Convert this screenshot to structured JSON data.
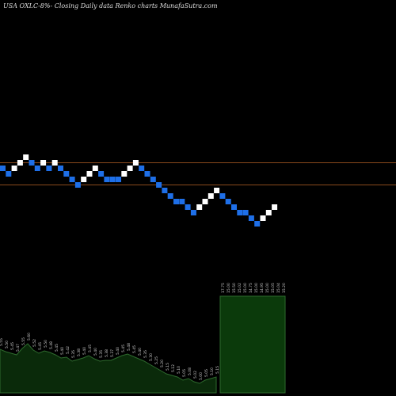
{
  "title": "USA OXLC-8%-  Closing Daily data  Renko  charts MunafaSutra.com",
  "colors": {
    "background": "#000000",
    "up_brick": "#ffffff",
    "down_brick": "#1e6fe8",
    "ref_line": "#8b4a1c",
    "volume_fill": "#0a2a0a",
    "volume_bright": "#0b3a0b",
    "volume_stroke": "#2e6b2e",
    "label": "#cccccc"
  },
  "chart_data": {
    "type": "renko",
    "bricks": [
      {
        "level": 22,
        "dir": "down"
      },
      {
        "level": 21,
        "dir": "down"
      },
      {
        "level": 22,
        "dir": "up"
      },
      {
        "level": 23,
        "dir": "up"
      },
      {
        "level": 24,
        "dir": "up"
      },
      {
        "level": 23,
        "dir": "down"
      },
      {
        "level": 22,
        "dir": "down"
      },
      {
        "level": 23,
        "dir": "up"
      },
      {
        "level": 22,
        "dir": "down"
      },
      {
        "level": 23,
        "dir": "up"
      },
      {
        "level": 22,
        "dir": "down"
      },
      {
        "level": 21,
        "dir": "down"
      },
      {
        "level": 20,
        "dir": "down"
      },
      {
        "level": 19,
        "dir": "down"
      },
      {
        "level": 20,
        "dir": "up"
      },
      {
        "level": 21,
        "dir": "up"
      },
      {
        "level": 22,
        "dir": "up"
      },
      {
        "level": 21,
        "dir": "down"
      },
      {
        "level": 20,
        "dir": "down"
      },
      {
        "level": 20,
        "dir": "down"
      },
      {
        "level": 20,
        "dir": "down"
      },
      {
        "level": 21,
        "dir": "up"
      },
      {
        "level": 22,
        "dir": "up"
      },
      {
        "level": 23,
        "dir": "up"
      },
      {
        "level": 22,
        "dir": "down"
      },
      {
        "level": 21,
        "dir": "down"
      },
      {
        "level": 20,
        "dir": "down"
      },
      {
        "level": 19,
        "dir": "down"
      },
      {
        "level": 18,
        "dir": "down"
      },
      {
        "level": 17,
        "dir": "down"
      },
      {
        "level": 16,
        "dir": "down"
      },
      {
        "level": 16,
        "dir": "down"
      },
      {
        "level": 15,
        "dir": "down"
      },
      {
        "level": 14,
        "dir": "down"
      },
      {
        "level": 15,
        "dir": "up"
      },
      {
        "level": 16,
        "dir": "up"
      },
      {
        "level": 17,
        "dir": "up"
      },
      {
        "level": 18,
        "dir": "up"
      },
      {
        "level": 17,
        "dir": "down"
      },
      {
        "level": 16,
        "dir": "down"
      },
      {
        "level": 15,
        "dir": "down"
      },
      {
        "level": 14,
        "dir": "down"
      },
      {
        "level": 14,
        "dir": "down"
      },
      {
        "level": 13,
        "dir": "down"
      },
      {
        "level": 12,
        "dir": "down"
      },
      {
        "level": 13,
        "dir": "up"
      },
      {
        "level": 14,
        "dir": "up"
      },
      {
        "level": 15,
        "dir": "up"
      }
    ],
    "reference_lines": [
      23,
      19
    ],
    "volume": [
      {
        "label": "5.55",
        "value": 55
      },
      {
        "label": "5.50",
        "value": 52
      },
      {
        "label": "5.45",
        "value": 50
      },
      {
        "label": "5.47",
        "value": 48
      },
      {
        "label": "5.55",
        "value": 56
      },
      {
        "label": "5.60",
        "value": 62
      },
      {
        "label": "5.52",
        "value": 54
      },
      {
        "label": "5.45",
        "value": 50
      },
      {
        "label": "5.50",
        "value": 53
      },
      {
        "label": "5.48",
        "value": 51
      },
      {
        "label": "5.45",
        "value": 48
      },
      {
        "label": "5.40",
        "value": 44
      },
      {
        "label": "5.42",
        "value": 45
      },
      {
        "label": "5.35",
        "value": 40
      },
      {
        "label": "5.38",
        "value": 42
      },
      {
        "label": "5.40",
        "value": 44
      },
      {
        "label": "5.45",
        "value": 47
      },
      {
        "label": "5.40",
        "value": 43
      },
      {
        "label": "5.35",
        "value": 40
      },
      {
        "label": "5.38",
        "value": 41
      },
      {
        "label": "5.37",
        "value": 41
      },
      {
        "label": "5.40",
        "value": 44
      },
      {
        "label": "5.45",
        "value": 47
      },
      {
        "label": "5.48",
        "value": 49
      },
      {
        "label": "5.45",
        "value": 46
      },
      {
        "label": "5.40",
        "value": 43
      },
      {
        "label": "5.35",
        "value": 40
      },
      {
        "label": "5.30",
        "value": 36
      },
      {
        "label": "5.25",
        "value": 32
      },
      {
        "label": "5.20",
        "value": 28
      },
      {
        "label": "5.15",
        "value": 24
      },
      {
        "label": "5.12",
        "value": 22
      },
      {
        "label": "5.10",
        "value": 20
      },
      {
        "label": "5.05",
        "value": 16
      },
      {
        "label": "5.08",
        "value": 18
      },
      {
        "label": "5.02",
        "value": 14
      },
      {
        "label": "5.00",
        "value": 12
      },
      {
        "label": "5.05",
        "value": 16
      },
      {
        "label": "5.10",
        "value": 18
      },
      {
        "label": "5.15",
        "value": 20
      },
      {
        "label": "17.75",
        "value": 122
      },
      {
        "label": "15.00",
        "value": 122
      },
      {
        "label": "15.50",
        "value": 122
      },
      {
        "label": "15.02",
        "value": 122
      },
      {
        "label": "15.00",
        "value": 122
      },
      {
        "label": "14.75",
        "value": 122
      },
      {
        "label": "15.00",
        "value": 122
      },
      {
        "label": "14.95",
        "value": 122
      },
      {
        "label": "15.00",
        "value": 122
      },
      {
        "label": "15.05",
        "value": 122
      },
      {
        "label": "15.04",
        "value": 122
      },
      {
        "label": "15.20",
        "value": 122
      }
    ]
  }
}
